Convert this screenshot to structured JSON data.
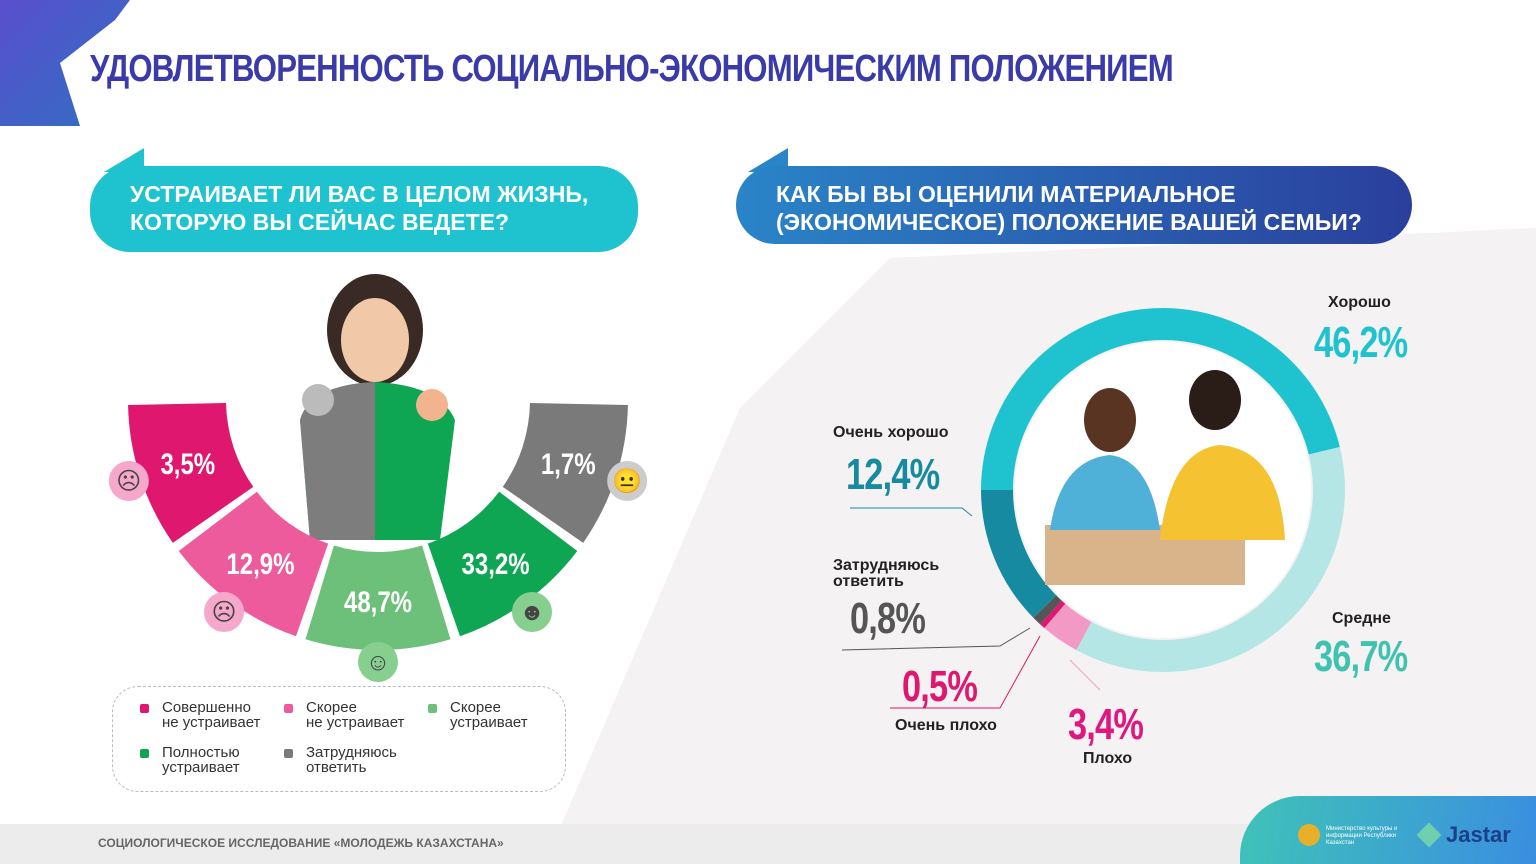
{
  "title": "УДОВЛЕТВОРЕННОСТЬ СОЦИАЛЬНО-ЭКОНОМИЧЕСКИМ ПОЛОЖЕНИЕМ",
  "footer": {
    "text": "СОЦИОЛОГИЧЕСКОЕ ИССЛЕДОВАНИЕ «МОЛОДЕЖЬ КАЗАХСТАНА»",
    "ministry": "Министерство культуры и информации Республики Казахстан",
    "brand": "Jastar"
  },
  "chart_data": [
    {
      "type": "pie",
      "title": "УСТРАИВАЕТ ЛИ ВАС В ЦЕЛОМ ЖИЗНЬ, КОТОРУЮ ВЫ СЕЙЧАС ВЕДЕТЕ?",
      "slices": [
        {
          "name": "Совершенно не устраивает",
          "value": 3.5,
          "label": "3,5%",
          "color": "#e0176e",
          "icon": "sad-face-icon"
        },
        {
          "name": "Скорее не устраивает",
          "value": 12.9,
          "label": "12,9%",
          "color": "#ee5b9c",
          "icon": "frown-face-icon"
        },
        {
          "name": "Скорее устраивает",
          "value": 48.7,
          "label": "48,7%",
          "color": "#6cc07a",
          "icon": "smile-face-icon"
        },
        {
          "name": "Полностью устраивает",
          "value": 33.2,
          "label": "33,2%",
          "color": "#0ea653",
          "icon": "grin-face-icon"
        },
        {
          "name": "Затрудняюсь ответить",
          "value": 1.7,
          "label": "1,7%",
          "color": "#7a7a7a",
          "icon": "neutral-face-icon"
        }
      ],
      "legend": [
        "Совершенно\nне устраивает",
        "Скорее\nне устраивает",
        "Скорее\nустраивает",
        "Полностью\nустраивает",
        "Затрудняюсь\nответить"
      ]
    },
    {
      "type": "pie",
      "title": "КАК БЫ ВЫ ОЦЕНИЛИ МАТЕРИАЛЬНОЕ (ЭКОНОМИЧЕСКОЕ) ПОЛОЖЕНИЕ ВАШЕЙ СЕМЬИ?",
      "slices": [
        {
          "name": "Хорошо",
          "value": 46.2,
          "label": "46,2%",
          "color": "#1ec3cf"
        },
        {
          "name": "Средне",
          "value": 36.7,
          "label": "36,7%",
          "color": "#b5e6e6"
        },
        {
          "name": "Плохо",
          "value": 3.4,
          "label": "3,4%",
          "color": "#f29ac5"
        },
        {
          "name": "Очень плохо",
          "value": 0.5,
          "label": "0,5%",
          "color": "#e0176e"
        },
        {
          "name": "Затрудняюсь ответить",
          "value": 0.8,
          "label": "0,8%",
          "color": "#555555"
        },
        {
          "name": "Очень хорошо",
          "value": 12.4,
          "label": "12,4%",
          "color": "#168aa0"
        }
      ]
    }
  ]
}
